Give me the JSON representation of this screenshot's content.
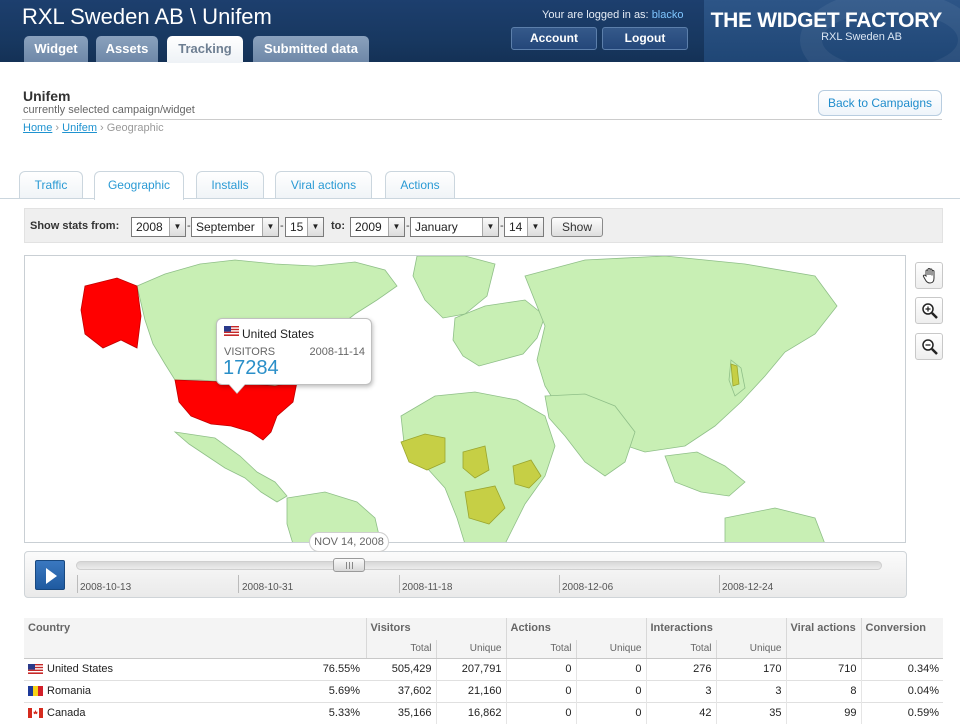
{
  "header": {
    "site_title": "RXL Sweden AB \\ Unifem",
    "login_prefix": "Your are logged in as:",
    "username": "blacko",
    "account_button": "Account",
    "logout_button": "Logout",
    "brand_title": "THE WIDGET FACTORY",
    "brand_subtitle": "RXL Sweden AB",
    "tabs": [
      "Widget",
      "Assets",
      "Tracking",
      "Submitted data"
    ],
    "active_tab": "Tracking"
  },
  "page": {
    "title": "Unifem",
    "subtitle": "currently selected campaign/widget",
    "back_button": "Back to Campaigns",
    "breadcrumb": [
      "Home",
      "Unifem",
      "Geographic"
    ]
  },
  "subtabs": [
    "Traffic",
    "Geographic",
    "Installs",
    "Viral actions",
    "Actions"
  ],
  "active_subtab": "Geographic",
  "stats_filter": {
    "label_from": "Show stats from:",
    "label_to": "to:",
    "from_year": "2008",
    "from_month": "September",
    "from_day": "15",
    "to_year": "2009",
    "to_month": "January",
    "to_day": "14",
    "show_button": "Show"
  },
  "map": {
    "colors": {
      "ocean": "#ffffff",
      "land": "#c8efb4",
      "border": "#8fbf88",
      "high": "#ff0000",
      "medium": "#c6cf45"
    },
    "tooltip": {
      "country": "United States",
      "label": "VISITORS",
      "date": "2008-11-14",
      "value": "17284"
    },
    "controls": [
      "pan-icon",
      "zoom-in-icon",
      "zoom-out-icon"
    ]
  },
  "timeline": {
    "current_date": "NOV 14, 2008",
    "ticks": [
      "2008-10-13",
      "2008-10-31",
      "2008-11-18",
      "2008-12-06",
      "2008-12-24"
    ]
  },
  "table": {
    "headers": {
      "country": "Country",
      "visitors": "Visitors",
      "actions": "Actions",
      "interactions": "Interactions",
      "viral": "Viral actions",
      "conversion": "Conversion"
    },
    "subheaders": {
      "total": "Total",
      "unique": "Unique"
    },
    "rows": [
      {
        "country": "United States",
        "flag": "us",
        "share": "76.55%",
        "visitors_total": "505,429",
        "visitors_unique": "207,791",
        "actions_total": "0",
        "actions_unique": "0",
        "inter_total": "276",
        "inter_unique": "170",
        "viral": "710",
        "conversion": "0.34%"
      },
      {
        "country": "Romania",
        "flag": "ro",
        "share": "5.69%",
        "visitors_total": "37,602",
        "visitors_unique": "21,160",
        "actions_total": "0",
        "actions_unique": "0",
        "inter_total": "3",
        "inter_unique": "3",
        "viral": "8",
        "conversion": "0.04%"
      },
      {
        "country": "Canada",
        "flag": "ca",
        "share": "5.33%",
        "visitors_total": "35,166",
        "visitors_unique": "16,862",
        "actions_total": "0",
        "actions_unique": "0",
        "inter_total": "42",
        "inter_unique": "35",
        "viral": "99",
        "conversion": "0.59%"
      }
    ]
  }
}
